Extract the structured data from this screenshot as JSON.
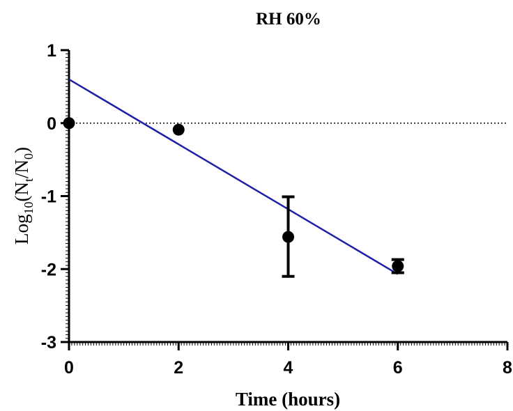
{
  "chart_data": {
    "type": "scatter",
    "title": "RH 60%",
    "xlabel": "Time (hours)",
    "ylabel": {
      "base": "Log",
      "base_sub": "10",
      "open": "(N",
      "numer_sub": "t",
      "mid": "/N",
      "denom_sub": "0",
      "close": ")"
    },
    "xlim": [
      0,
      8
    ],
    "ylim": [
      -3,
      1
    ],
    "x_ticks": [
      0,
      2,
      4,
      6,
      8
    ],
    "y_ticks": [
      1,
      0,
      -1,
      -2,
      -3
    ],
    "x_tick_labels": [
      "0",
      "2",
      "4",
      "6",
      "8"
    ],
    "y_tick_labels": [
      "1",
      "0",
      "-1",
      "-2",
      "-3"
    ],
    "reference_line": {
      "y": 0,
      "style": "dotted"
    },
    "points": [
      {
        "x": 0,
        "y": 0,
        "err_low": 0,
        "err_high": 0
      },
      {
        "x": 2,
        "y": -0.09,
        "err_low": 0,
        "err_high": 0
      },
      {
        "x": 4,
        "y": -1.56,
        "err_low": -2.1,
        "err_high": -1.01
      },
      {
        "x": 6,
        "y": -1.96,
        "err_low": -2.05,
        "err_high": -1.87
      }
    ],
    "fit_line": {
      "x": [
        0,
        6
      ],
      "y": [
        0.6,
        -2.07
      ],
      "color": "#1f1fa8"
    },
    "colors": {
      "points": "#000000",
      "fit": "#1f1fa8",
      "axes": "#000000"
    },
    "grid": false,
    "legend": "none"
  }
}
